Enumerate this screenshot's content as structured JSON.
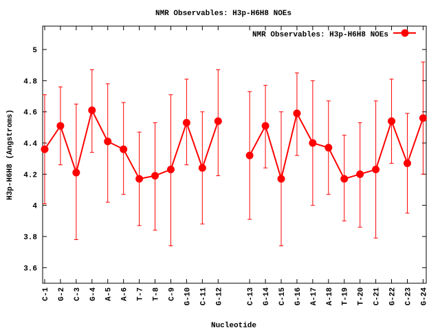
{
  "chart_data": {
    "type": "line",
    "title": "NMR Observables: H3p-H6H8 NOEs",
    "xlabel": "Nucleotide",
    "ylabel": "H3p-H6H8 (Angstroms)",
    "legend": {
      "label": "NMR Observables: H3p-H6H8 NOEs",
      "placement": "top-right"
    },
    "ylim": [
      3.5,
      5.15
    ],
    "xlim": [
      0.87,
      25.2
    ],
    "yticks": [
      3.6,
      3.8,
      4,
      4.2,
      4.4,
      4.6,
      4.8,
      5
    ],
    "ytick_labels": [
      "3.6",
      "3.8",
      "4",
      "4.2",
      "4.4",
      "4.6",
      "4.8",
      "5"
    ],
    "series_color": "#ff0000",
    "grid": false,
    "points": [
      {
        "x": 1,
        "label": "C-1",
        "y": 4.36,
        "ymin": 4.01,
        "ymax": 4.71
      },
      {
        "x": 2,
        "label": "G-2",
        "y": 4.51,
        "ymin": 4.26,
        "ymax": 4.76
      },
      {
        "x": 3,
        "label": "C-3",
        "y": 4.21,
        "ymin": 3.78,
        "ymax": 4.65
      },
      {
        "x": 4,
        "label": "G-4",
        "y": 4.61,
        "ymin": 4.34,
        "ymax": 4.87
      },
      {
        "x": 5,
        "label": "A-5",
        "y": 4.41,
        "ymin": 4.02,
        "ymax": 4.78
      },
      {
        "x": 6,
        "label": "A-6",
        "y": 4.36,
        "ymin": 4.07,
        "ymax": 4.66
      },
      {
        "x": 7,
        "label": "T-7",
        "y": 4.17,
        "ymin": 3.87,
        "ymax": 4.47
      },
      {
        "x": 8,
        "label": "T-8",
        "y": 4.19,
        "ymin": 3.84,
        "ymax": 4.53
      },
      {
        "x": 9,
        "label": "C-9",
        "y": 4.23,
        "ymin": 3.74,
        "ymax": 4.71
      },
      {
        "x": 10,
        "label": "G-10",
        "y": 4.53,
        "ymin": 4.26,
        "ymax": 4.81
      },
      {
        "x": 11,
        "label": "C-11",
        "y": 4.24,
        "ymin": 3.88,
        "ymax": 4.6
      },
      {
        "x": 12,
        "label": "G-12",
        "y": 4.54,
        "ymin": 4.19,
        "ymax": 4.87
      },
      {
        "x": 14,
        "label": "C-13",
        "y": 4.32,
        "ymin": 3.91,
        "ymax": 4.73
      },
      {
        "x": 15,
        "label": "G-14",
        "y": 4.51,
        "ymin": 4.24,
        "ymax": 4.77
      },
      {
        "x": 16,
        "label": "C-15",
        "y": 4.17,
        "ymin": 3.74,
        "ymax": 4.6
      },
      {
        "x": 17,
        "label": "G-16",
        "y": 4.59,
        "ymin": 4.32,
        "ymax": 4.85
      },
      {
        "x": 18,
        "label": "A-17",
        "y": 4.4,
        "ymin": 4.0,
        "ymax": 4.8
      },
      {
        "x": 19,
        "label": "A-18",
        "y": 4.37,
        "ymin": 4.07,
        "ymax": 4.67
      },
      {
        "x": 20,
        "label": "T-19",
        "y": 4.17,
        "ymin": 3.9,
        "ymax": 4.45
      },
      {
        "x": 21,
        "label": "T-20",
        "y": 4.2,
        "ymin": 3.86,
        "ymax": 4.53
      },
      {
        "x": 22,
        "label": "C-21",
        "y": 4.23,
        "ymin": 3.79,
        "ymax": 4.67
      },
      {
        "x": 23,
        "label": "G-22",
        "y": 4.54,
        "ymin": 4.27,
        "ymax": 4.81
      },
      {
        "x": 24,
        "label": "C-23",
        "y": 4.27,
        "ymin": 3.95,
        "ymax": 4.59
      },
      {
        "x": 25,
        "label": "G-24",
        "y": 4.56,
        "ymin": 4.2,
        "ymax": 4.92
      }
    ]
  }
}
